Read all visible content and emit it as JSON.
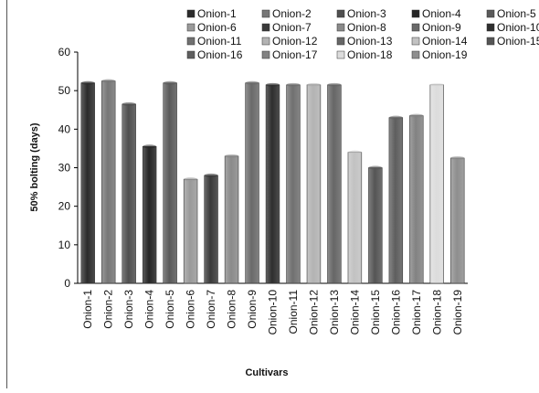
{
  "chart_data": {
    "type": "bar",
    "title": "",
    "xlabel": "Cultivars",
    "ylabel": "50% bolting (days)",
    "ylim": [
      0,
      60
    ],
    "yticks": [
      0,
      10,
      20,
      30,
      40,
      50,
      60
    ],
    "grid": false,
    "legend_position": "top",
    "categories": [
      "Onion-1",
      "Onion-2",
      "Onion-3",
      "Onion-4",
      "Onion-5",
      "Onion-6",
      "Onion-7",
      "Onion-8",
      "Onion-9",
      "Onion-10",
      "Onion-11",
      "Onion-12",
      "Onion-13",
      "Onion-14",
      "Onion-15",
      "Onion-16",
      "Onion-17",
      "Onion-18",
      "Onion-19"
    ],
    "values": [
      52,
      52.5,
      46.5,
      35.5,
      52,
      27,
      28,
      33,
      52,
      51.5,
      51.5,
      51.5,
      51.5,
      34,
      30,
      43,
      43.5,
      51.5,
      32.5
    ],
    "colors": [
      "#2b2b2b",
      "#767676",
      "#4f4f4f",
      "#262626",
      "#5a5a5a",
      "#9a9a9a",
      "#3a3a3a",
      "#8a8a8a",
      "#6a6a6a",
      "#2e2e2e",
      "#707070",
      "#b3b3b3",
      "#666666",
      "#c2c2c2",
      "#555555",
      "#5e5e5e",
      "#828282",
      "#dcdcdc",
      "#8e8e8e"
    ]
  }
}
